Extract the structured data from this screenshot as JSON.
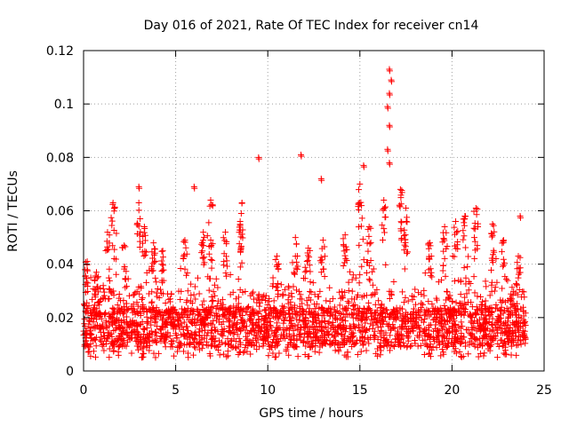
{
  "chart_data": {
    "type": "scatter",
    "title": "Day 016 of 2021, Rate Of TEC Index for receiver cn14",
    "xlabel": "GPS time / hours",
    "ylabel": "ROTI / TECUs",
    "xlim": [
      0,
      25
    ],
    "ylim": [
      0,
      0.12
    ],
    "x_ticks": [
      0,
      5,
      10,
      15,
      20,
      25
    ],
    "x_tick_labels": [
      "0",
      "5",
      "10",
      "15",
      "20",
      "25"
    ],
    "y_ticks": [
      0,
      0.02,
      0.04,
      0.06,
      0.08,
      0.1,
      0.12
    ],
    "y_tick_labels": [
      "0",
      "0.02",
      "0.04",
      "0.06",
      "0.08",
      "0.1",
      "0.12"
    ],
    "grid": true,
    "marker": "+",
    "series_color": "#ff0000",
    "data_x_range": [
      0,
      24
    ],
    "typical_band": [
      0.005,
      0.03
    ],
    "outliers": [
      {
        "x": 9.5,
        "y": 0.08
      },
      {
        "x": 11.8,
        "y": 0.081
      },
      {
        "x": 12.9,
        "y": 0.072
      },
      {
        "x": 15.2,
        "y": 0.077
      },
      {
        "x": 16.6,
        "y": 0.113
      },
      {
        "x": 16.7,
        "y": 0.109
      },
      {
        "x": 16.6,
        "y": 0.104
      },
      {
        "x": 16.5,
        "y": 0.099
      },
      {
        "x": 16.6,
        "y": 0.092
      },
      {
        "x": 16.5,
        "y": 0.083
      },
      {
        "x": 16.6,
        "y": 0.078
      },
      {
        "x": 6.0,
        "y": 0.069
      },
      {
        "x": 3.0,
        "y": 0.069
      },
      {
        "x": 23.7,
        "y": 0.058
      }
    ],
    "peaks": [
      {
        "x": 0.2,
        "y": 0.041
      },
      {
        "x": 0.7,
        "y": 0.037
      },
      {
        "x": 1.3,
        "y": 0.052
      },
      {
        "x": 1.6,
        "y": 0.063
      },
      {
        "x": 2.2,
        "y": 0.047
      },
      {
        "x": 3.0,
        "y": 0.063
      },
      {
        "x": 3.3,
        "y": 0.054
      },
      {
        "x": 3.8,
        "y": 0.048
      },
      {
        "x": 4.3,
        "y": 0.045
      },
      {
        "x": 5.5,
        "y": 0.049
      },
      {
        "x": 6.5,
        "y": 0.052
      },
      {
        "x": 6.9,
        "y": 0.064
      },
      {
        "x": 7.7,
        "y": 0.052
      },
      {
        "x": 8.5,
        "y": 0.056
      },
      {
        "x": 8.6,
        "y": 0.063
      },
      {
        "x": 10.5,
        "y": 0.043
      },
      {
        "x": 11.5,
        "y": 0.05
      },
      {
        "x": 12.2,
        "y": 0.046
      },
      {
        "x": 13.0,
        "y": 0.049
      },
      {
        "x": 14.2,
        "y": 0.051
      },
      {
        "x": 15.0,
        "y": 0.07
      },
      {
        "x": 15.5,
        "y": 0.054
      },
      {
        "x": 16.3,
        "y": 0.064
      },
      {
        "x": 17.2,
        "y": 0.068
      },
      {
        "x": 17.5,
        "y": 0.061
      },
      {
        "x": 18.8,
        "y": 0.048
      },
      {
        "x": 19.6,
        "y": 0.054
      },
      {
        "x": 20.2,
        "y": 0.056
      },
      {
        "x": 20.7,
        "y": 0.058
      },
      {
        "x": 21.3,
        "y": 0.061
      },
      {
        "x": 22.2,
        "y": 0.055
      },
      {
        "x": 22.8,
        "y": 0.049
      },
      {
        "x": 23.6,
        "y": 0.043
      }
    ]
  }
}
